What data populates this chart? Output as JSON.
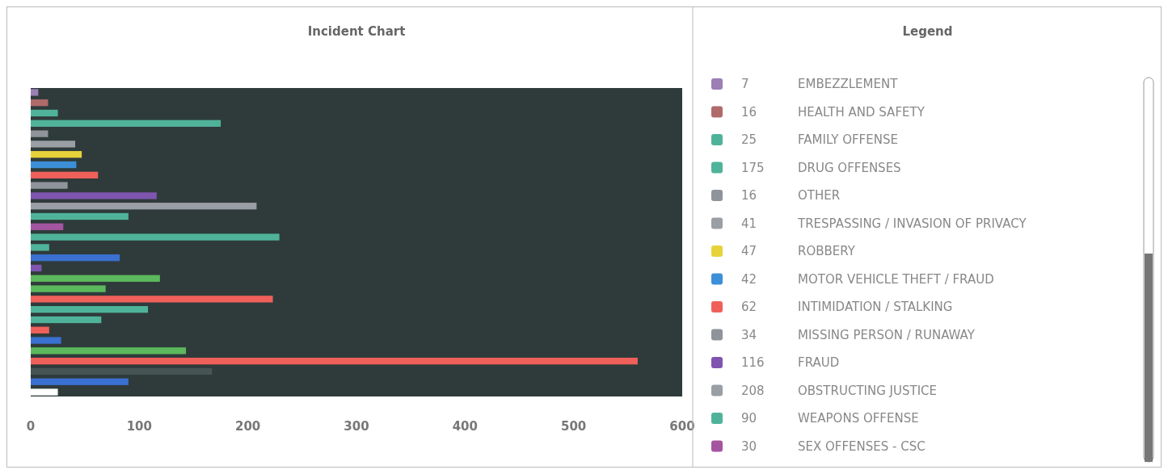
{
  "chart_data": [
    {
      "type": "bar",
      "orientation": "horizontal",
      "title": "Incident Chart",
      "tick_labels": "x",
      "categories": [
        null,
        null,
        null,
        null,
        null,
        null,
        null,
        null,
        null,
        null,
        null,
        null,
        null,
        null,
        null,
        null,
        null,
        null,
        null,
        null,
        null,
        null,
        null,
        null,
        null,
        null,
        null,
        null,
        null,
        null
      ],
      "values": [
        7,
        16,
        25,
        175,
        16,
        41,
        47,
        42,
        62,
        34,
        116,
        208,
        90,
        30,
        229,
        17,
        82,
        10,
        119,
        69,
        223,
        108,
        65,
        17,
        28,
        143,
        559,
        167,
        90,
        25
      ],
      "colors": [
        "#9b7fb5",
        "#b06a6a",
        "#4fb39a",
        "#4fb39a",
        "#8f939a",
        "#9a9ea5",
        "#e8d23a",
        "#3d8fd8",
        "#f0605a",
        "#8f939a",
        "#7f55b0",
        "#9a9ea5",
        "#4fb39a",
        "#a455a0",
        "#4fb39a",
        "#4fb39a",
        "#3a70d0",
        "#7f55b0",
        "#5cb85c",
        "#5cb85c",
        "#f0605a",
        "#4fb39a",
        "#4fb39a",
        "#f0605a",
        "#3a70d0",
        "#5cb85c",
        "#f0605a",
        "#465454",
        "#3a70d0",
        "#ffffff"
      ],
      "xlim": [
        0,
        600
      ],
      "xticks": [
        0,
        100,
        200,
        300,
        400,
        500,
        600
      ]
    },
    {
      "type": "other",
      "title": "Legend",
      "annotations": [
        "7 EMBEZZLEMENT",
        "16 HEALTH AND SAFETY",
        "25 FAMILY OFFENSE",
        "175 DRUG OFFENSES",
        "16 OTHER",
        "41 TRESPASSING / INVASION OF PRIVACY",
        "47 ROBBERY",
        "42 MOTOR VEHICLE THEFT / FRAUD",
        "62 INTIMIDATION / STALKING",
        "34 MISSING PERSON / RUNAWAY",
        "116 FRAUD",
        "208 OBSTRUCTING JUSTICE",
        "90 WEAPONS OFFENSE",
        "30 SEX OFFENSES - CSC"
      ]
    }
  ]
}
